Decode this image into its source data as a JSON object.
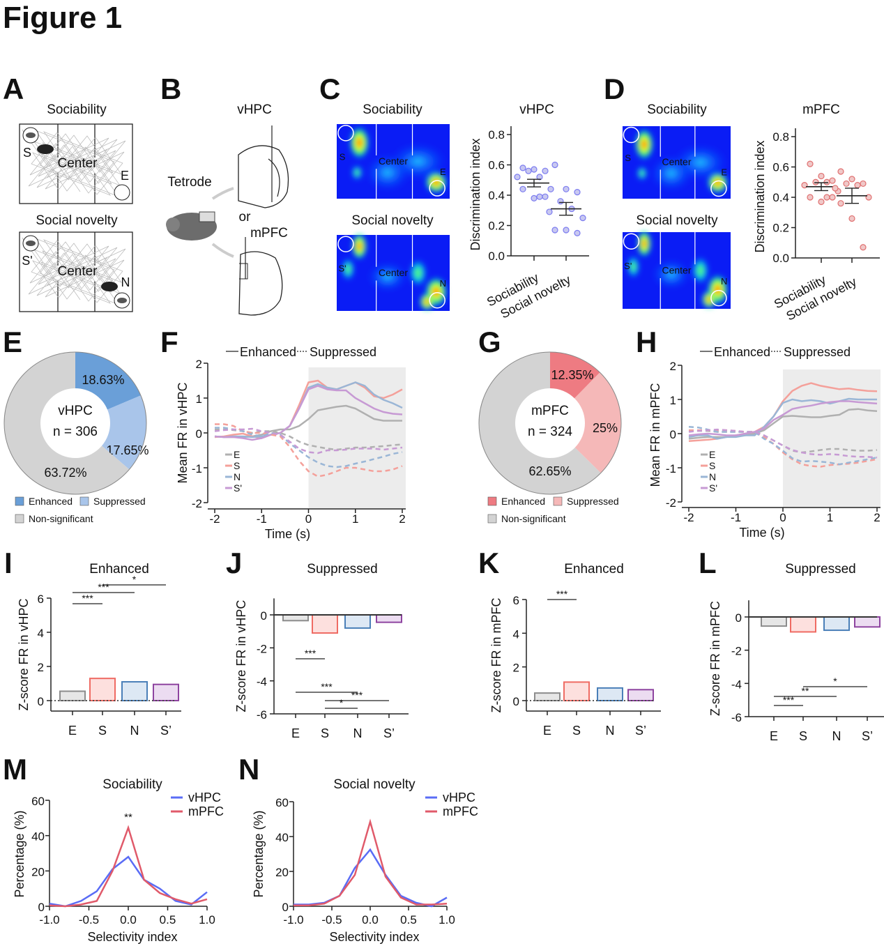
{
  "figure_title": "Figure 1",
  "panel_letters": [
    "A",
    "B",
    "C",
    "D",
    "E",
    "F",
    "G",
    "H",
    "I",
    "J",
    "K",
    "L",
    "M",
    "N"
  ],
  "colors": {
    "E": "#8c8c8c",
    "S": "#ef6b63",
    "N": "#4a7fb8",
    "S_prime": "#8e44a0",
    "vHPC_line": "#5a6cf5",
    "mPFC_line": "#e05a6a"
  },
  "panel_A": {
    "sociability": {
      "title": "Sociability",
      "labels": [
        "S",
        "Center",
        "E"
      ]
    },
    "social_novelty": {
      "title": "Social novelty",
      "labels": [
        "S'",
        "Center",
        "N"
      ]
    }
  },
  "panel_B": {
    "title": "vHPC",
    "tetrode": "Tetrode",
    "or": "or",
    "mpfc": "mPFC"
  },
  "panel_C_heatmaps": {
    "sociability": {
      "title": "Sociability",
      "labels": [
        "S",
        "Center",
        "E"
      ]
    },
    "social_novelty": {
      "title": "Social novelty",
      "labels": [
        "S'",
        "Center",
        "N"
      ]
    }
  },
  "panel_D_heatmaps": {
    "sociability": {
      "title": "Sociability",
      "labels": [
        "S",
        "Center",
        "E"
      ]
    },
    "social_novelty": {
      "title": "Social novelty",
      "labels": [
        "S'",
        "Center",
        "N"
      ]
    }
  },
  "chart_data": [
    {
      "panel": "C",
      "type": "scatter",
      "title": "vHPC",
      "ylabel": "Discrimination index",
      "ylim": [
        0,
        0.8
      ],
      "yticks": [
        "0.0",
        "0.2",
        "0.4",
        "0.6",
        "0.8"
      ],
      "categories": [
        "Sociability",
        "Social novelty"
      ],
      "points": [
        [
          0.58,
          0.57,
          0.56,
          0.56,
          0.52,
          0.52,
          0.44,
          0.44,
          0.38,
          0.39,
          0.39
        ],
        [
          0.6,
          0.44,
          0.42,
          0.36,
          0.31,
          0.29,
          0.25,
          0.17,
          0.17,
          0.15
        ]
      ],
      "mean": [
        0.48,
        0.31
      ],
      "sem": [
        0.025,
        0.042
      ]
    },
    {
      "panel": "D",
      "type": "scatter",
      "title": "mPFC",
      "ylabel": "Discrimination index",
      "ylim": [
        0,
        0.8
      ],
      "yticks": [
        "0.0",
        "0.2",
        "0.4",
        "0.6",
        "0.8"
      ],
      "categories": [
        "Sociability",
        "Social novelty"
      ],
      "points": [
        [
          0.62,
          0.54,
          0.51,
          0.5,
          0.5,
          0.48,
          0.44,
          0.4,
          0.37,
          0.4,
          0.4
        ],
        [
          0.57,
          0.52,
          0.49,
          0.49,
          0.48,
          0.46,
          0.4,
          0.36,
          0.26,
          0.07
        ]
      ],
      "mean": [
        0.47,
        0.41
      ],
      "sem": [
        0.026,
        0.05
      ]
    },
    {
      "panel": "E",
      "type": "pie",
      "center_title": "vHPC",
      "center_n": "n = 306",
      "slices": [
        {
          "name": "Enhanced",
          "value": 18.63,
          "label": "18.63%",
          "color": "#6a9fd8"
        },
        {
          "name": "Suppressed",
          "value": 17.65,
          "label": "17.65%",
          "color": "#a9c5ea"
        },
        {
          "name": "Non-significant",
          "value": 63.72,
          "label": "63.72%",
          "color": "#d3d3d3"
        }
      ]
    },
    {
      "panel": "G",
      "type": "pie",
      "center_title": "mPFC",
      "center_n": "n = 324",
      "slices": [
        {
          "name": "Enhanced",
          "value": 12.35,
          "label": "12.35%",
          "color": "#ee7b82"
        },
        {
          "name": "Suppressed",
          "value": 25,
          "label": "25%",
          "color": "#f5b8b8"
        },
        {
          "name": "Non-significant",
          "value": 62.65,
          "label": "62.65%",
          "color": "#d3d3d3"
        }
      ]
    },
    {
      "panel": "F",
      "type": "line",
      "xlabel": "Time (s)",
      "ylabel": "Mean FR in vHPC",
      "xlim": [
        -2,
        2
      ],
      "ylim": [
        -2,
        2
      ],
      "xticks": [
        "-2",
        "-1",
        "0",
        "1",
        "2"
      ],
      "yticks": [
        "-2",
        "-1",
        "0",
        "1",
        "2"
      ],
      "shaded_interval": [
        0,
        2
      ],
      "style_legend": [
        "Enhanced",
        "Suppressed"
      ],
      "x": [
        -2,
        -1.8,
        -1.6,
        -1.4,
        -1.2,
        -1,
        -0.8,
        -0.6,
        -0.4,
        -0.2,
        0,
        0.2,
        0.4,
        0.6,
        0.8,
        1,
        1.2,
        1.4,
        1.6,
        1.8,
        2
      ],
      "series": [
        {
          "name": "E",
          "style": "Enhanced",
          "color": "#b0b0b0",
          "values": [
            -0.1,
            -0.12,
            -0.12,
            -0.12,
            -0.1,
            -0.05,
            0.05,
            0.1,
            0.1,
            0.2,
            0.4,
            0.65,
            0.7,
            0.75,
            0.78,
            0.7,
            0.55,
            0.4,
            0.35,
            0.35,
            0.35
          ]
        },
        {
          "name": "S",
          "style": "Enhanced",
          "color": "#f4a09a",
          "values": [
            -0.12,
            -0.1,
            -0.05,
            -0.02,
            -0.1,
            -0.15,
            -0.05,
            0,
            0.2,
            0.8,
            1.45,
            1.5,
            1.3,
            1.25,
            1.35,
            1.45,
            1.3,
            1.05,
            1,
            1.1,
            1.25
          ]
        },
        {
          "name": "N",
          "style": "Enhanced",
          "color": "#9ab6d6",
          "values": [
            -0.1,
            -0.12,
            -0.1,
            -0.1,
            -0.12,
            -0.1,
            -0.05,
            0,
            0.2,
            0.7,
            1.3,
            1.4,
            1.3,
            1.25,
            1.35,
            1.45,
            1.35,
            1.1,
            0.95,
            0.85,
            0.72
          ]
        },
        {
          "name": "S'",
          "style": "Enhanced",
          "color": "#c79ad4",
          "values": [
            -0.1,
            -0.12,
            -0.12,
            -0.15,
            -0.2,
            -0.15,
            -0.05,
            0,
            0.2,
            0.7,
            1.25,
            1.35,
            1.25,
            1.22,
            1.22,
            1.0,
            0.85,
            0.7,
            0.6,
            0.55,
            0.53
          ]
        },
        {
          "name": "E",
          "style": "Suppressed",
          "color": "#b0b0b0",
          "values": [
            0.1,
            0.1,
            0.08,
            0.05,
            0,
            0.05,
            0.05,
            0,
            -0.1,
            -0.25,
            -0.35,
            -0.4,
            -0.45,
            -0.48,
            -0.45,
            -0.42,
            -0.42,
            -0.4,
            -0.38,
            -0.35,
            -0.33
          ]
        },
        {
          "name": "S",
          "style": "Suppressed",
          "color": "#f4a09a",
          "values": [
            0.25,
            0.25,
            0.2,
            0.05,
            0,
            0,
            -0.05,
            -0.1,
            -0.4,
            -0.8,
            -1.1,
            -1.25,
            -1.2,
            -1.1,
            -1.0,
            -1.0,
            -1.05,
            -1.1,
            -1.1,
            -1.05,
            -0.95
          ]
        },
        {
          "name": "N",
          "style": "Suppressed",
          "color": "#9ab6d6",
          "values": [
            0.15,
            0.15,
            0.1,
            0.05,
            -0.05,
            -0.1,
            0,
            -0.05,
            -0.3,
            -0.5,
            -0.7,
            -0.85,
            -0.95,
            -0.98,
            -0.95,
            -0.88,
            -0.82,
            -0.75,
            -0.68,
            -0.6,
            -0.55
          ]
        },
        {
          "name": "S'",
          "style": "Suppressed",
          "color": "#c79ad4",
          "values": [
            0.05,
            0.08,
            0.1,
            0.1,
            0.12,
            0.05,
            0,
            -0.05,
            -0.25,
            -0.45,
            -0.55,
            -0.58,
            -0.5,
            -0.5,
            -0.48,
            -0.45,
            -0.45,
            -0.45,
            -0.48,
            -0.45,
            -0.42
          ]
        }
      ]
    },
    {
      "panel": "H",
      "type": "line",
      "xlabel": "Time (s)",
      "ylabel": "Mean FR in mPFC",
      "xlim": [
        -2,
        2
      ],
      "ylim": [
        -2,
        2
      ],
      "xticks": [
        "-2",
        "-1",
        "0",
        "1",
        "2"
      ],
      "yticks": [
        "-2",
        "-1",
        "0",
        "1",
        "2"
      ],
      "shaded_interval": [
        0,
        2
      ],
      "style_legend": [
        "Enhanced",
        "Suppressed"
      ],
      "x": [
        -2,
        -1.8,
        -1.6,
        -1.4,
        -1.2,
        -1,
        -0.8,
        -0.6,
        -0.4,
        -0.2,
        0,
        0.2,
        0.4,
        0.6,
        0.8,
        1,
        1.2,
        1.4,
        1.6,
        1.8,
        2
      ],
      "series": [
        {
          "name": "E",
          "style": "Enhanced",
          "color": "#b0b0b0",
          "values": [
            -0.15,
            -0.12,
            -0.1,
            -0.1,
            -0.1,
            -0.05,
            -0.05,
            0,
            0.1,
            0.3,
            0.5,
            0.52,
            0.5,
            0.48,
            0.48,
            0.52,
            0.55,
            0.7,
            0.72,
            0.68,
            0.66
          ]
        },
        {
          "name": "S",
          "style": "Enhanced",
          "color": "#f4a09a",
          "values": [
            -0.22,
            -0.2,
            -0.18,
            -0.15,
            -0.1,
            -0.05,
            0,
            0.05,
            0.2,
            0.5,
            0.95,
            1.25,
            1.4,
            1.48,
            1.4,
            1.35,
            1.3,
            1.32,
            1.28,
            1.25,
            1.24
          ]
        },
        {
          "name": "N",
          "style": "Enhanced",
          "color": "#9ab6d6",
          "values": [
            -0.1,
            -0.05,
            -0.05,
            -0.15,
            -0.1,
            -0.1,
            -0.05,
            -0.05,
            0.2,
            0.5,
            0.9,
            1.0,
            0.95,
            0.98,
            0.95,
            0.88,
            0.95,
            1.02,
            1.0,
            1.0,
            1.0
          ]
        },
        {
          "name": "S'",
          "style": "Enhanced",
          "color": "#c79ad4",
          "values": [
            -0.05,
            -0.02,
            0,
            -0.02,
            -0.05,
            -0.05,
            0,
            0.05,
            0.15,
            0.4,
            0.55,
            0.72,
            0.78,
            0.82,
            0.88,
            0.92,
            0.95,
            0.95,
            0.92,
            0.9,
            0.88
          ]
        },
        {
          "name": "E",
          "style": "Suppressed",
          "color": "#b0b0b0",
          "values": [
            0.1,
            0.08,
            0.08,
            0.05,
            0.05,
            0.05,
            0.05,
            0.05,
            -0.05,
            -0.2,
            -0.35,
            -0.5,
            -0.55,
            -0.52,
            -0.48,
            -0.45,
            -0.45,
            -0.48,
            -0.5,
            -0.5,
            -0.48
          ]
        },
        {
          "name": "S",
          "style": "Suppressed",
          "color": "#f4a09a",
          "values": [
            0.1,
            0.1,
            0.1,
            0.1,
            0.1,
            0.08,
            0.05,
            0.05,
            -0.1,
            -0.3,
            -0.55,
            -0.75,
            -0.9,
            -0.95,
            -0.97,
            -0.92,
            -0.9,
            -0.88,
            -0.85,
            -0.8,
            -0.75
          ]
        },
        {
          "name": "N",
          "style": "Suppressed",
          "color": "#9ab6d6",
          "values": [
            0.2,
            0.18,
            0.12,
            0.05,
            0.05,
            0.05,
            0.05,
            0.05,
            -0.15,
            -0.3,
            -0.5,
            -0.72,
            -0.82,
            -0.8,
            -0.82,
            -0.85,
            -0.9,
            -0.85,
            -0.8,
            -0.75,
            -0.7
          ]
        },
        {
          "name": "S'",
          "style": "Suppressed",
          "color": "#c79ad4",
          "values": [
            0.05,
            0.08,
            0.1,
            0.12,
            0.1,
            0.08,
            0.05,
            0.05,
            -0.05,
            -0.2,
            -0.35,
            -0.48,
            -0.55,
            -0.6,
            -0.62,
            -0.6,
            -0.62,
            -0.66,
            -0.68,
            -0.68,
            -0.7
          ]
        }
      ]
    },
    {
      "panel": "I",
      "type": "bar",
      "title": "Enhanced",
      "ylabel": "Z-score FR in vHPC",
      "ylim": [
        -1,
        6
      ],
      "yticks": [
        "0",
        "2",
        "4",
        "6"
      ],
      "categories": [
        "E",
        "S",
        "N",
        "S’"
      ],
      "values": [
        0.55,
        1.3,
        1.1,
        0.95
      ],
      "significance": [
        {
          "pair": [
            "E",
            "S"
          ],
          "label": "***"
        },
        {
          "pair": [
            "E",
            "N"
          ],
          "label": "***"
        },
        {
          "pair": [
            "S",
            "S’"
          ],
          "label": "*"
        }
      ]
    },
    {
      "panel": "J",
      "type": "bar",
      "title": "Suppressed",
      "ylabel": "Z-score FR in vHPC",
      "ylim": [
        -6,
        1
      ],
      "yticks": [
        "0",
        "-2",
        "-4",
        "-6"
      ],
      "categories": [
        "E",
        "S",
        "N",
        "S’"
      ],
      "values": [
        -0.35,
        -1.1,
        -0.8,
        -0.45
      ],
      "significance": [
        {
          "pair": [
            "E",
            "S"
          ],
          "label": "***"
        },
        {
          "pair": [
            "E",
            "N"
          ],
          "label": "***"
        },
        {
          "pair": [
            "S",
            "S’"
          ],
          "label": "***"
        },
        {
          "pair": [
            "S",
            "N"
          ],
          "label": "*"
        }
      ]
    },
    {
      "panel": "K",
      "type": "bar",
      "title": "Enhanced",
      "ylabel": "Z-score FR in mPFC",
      "ylim": [
        -1,
        6
      ],
      "yticks": [
        "0",
        "2",
        "4",
        "6"
      ],
      "categories": [
        "E",
        "S",
        "N",
        "S’"
      ],
      "values": [
        0.45,
        1.1,
        0.75,
        0.65
      ],
      "significance": [
        {
          "pair": [
            "E",
            "S"
          ],
          "label": "***"
        }
      ]
    },
    {
      "panel": "L",
      "type": "bar",
      "title": "Suppressed",
      "ylabel": "Z-score FR in mPFC",
      "ylim": [
        -6,
        1
      ],
      "yticks": [
        "0",
        "-2",
        "-4",
        "-6"
      ],
      "categories": [
        "E",
        "S",
        "N",
        "S’"
      ],
      "values": [
        -0.55,
        -0.9,
        -0.8,
        -0.6
      ],
      "significance": [
        {
          "pair": [
            "S",
            "S’"
          ],
          "label": "*"
        },
        {
          "pair": [
            "E",
            "N"
          ],
          "label": "**"
        },
        {
          "pair": [
            "E",
            "S"
          ],
          "label": "***"
        }
      ]
    },
    {
      "panel": "M",
      "type": "line",
      "title": "Sociability",
      "xlabel": "Selectivity index",
      "ylabel": "Percentage (%)",
      "xlim": [
        -1,
        1
      ],
      "ylim": [
        0,
        60
      ],
      "xticks": [
        "-1.0",
        "-0.5",
        "0.0",
        "0.5",
        "1.0"
      ],
      "yticks": [
        "0",
        "20",
        "40",
        "60"
      ],
      "annotation": "**",
      "x": [
        -1,
        -0.8,
        -0.6,
        -0.4,
        -0.2,
        0,
        0.2,
        0.4,
        0.6,
        0.8,
        1
      ],
      "series": [
        {
          "name": "vHPC",
          "color": "#5a6cf5",
          "values": [
            1.5,
            0,
            3,
            8.5,
            21,
            28,
            15,
            10,
            3,
            1,
            8
          ]
        },
        {
          "name": "mPFC",
          "color": "#e05a6a",
          "values": [
            0.5,
            0,
            1,
            3,
            20,
            44.5,
            15,
            7.5,
            4,
            1.5,
            4
          ]
        }
      ]
    },
    {
      "panel": "N",
      "type": "line",
      "title": "Social novelty",
      "xlabel": "Selectivity index",
      "ylabel": "Percentage (%)",
      "xlim": [
        -1,
        1
      ],
      "ylim": [
        0,
        60
      ],
      "xticks": [
        "-1.0",
        "-0.5",
        "0.0",
        "0.5",
        "1.0"
      ],
      "yticks": [
        "0",
        "20",
        "40",
        "60"
      ],
      "x": [
        -1,
        -0.8,
        -0.6,
        -0.4,
        -0.2,
        0,
        0.2,
        0.4,
        0.6,
        0.8,
        1
      ],
      "series": [
        {
          "name": "vHPC",
          "color": "#5a6cf5",
          "values": [
            1,
            1,
            2,
            6,
            22,
            32.5,
            18,
            6,
            2,
            0,
            5
          ]
        },
        {
          "name": "mPFC",
          "color": "#e05a6a",
          "values": [
            0.5,
            0.5,
            1.5,
            6,
            18,
            48.5,
            17,
            5,
            1,
            1,
            1.5
          ]
        }
      ]
    }
  ]
}
